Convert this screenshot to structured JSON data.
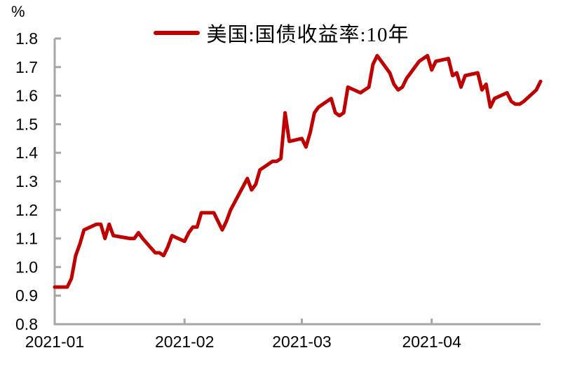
{
  "unit_label": "%",
  "chart_data": {
    "type": "line",
    "legend": "美国:国债收益率:10年",
    "unit": "%",
    "legend_position": "top-center",
    "grid": false,
    "line_color": "#C00000",
    "axis_color": "#A6A6A6",
    "text_color": "#000000",
    "y_axis": {
      "min": 0.8,
      "max": 1.8,
      "step": 0.1,
      "tick_labels": [
        "0.8",
        "0.9",
        "1.0",
        "1.1",
        "1.2",
        "1.3",
        "1.4",
        "1.5",
        "1.6",
        "1.7",
        "1.8"
      ]
    },
    "x_ticks": [
      {
        "label": "2021-01",
        "date": "2021-01-01"
      },
      {
        "label": "2021-02",
        "date": "2021-02-01"
      },
      {
        "label": "2021-03",
        "date": "2021-03-01"
      },
      {
        "label": "2021-04",
        "date": "2021-04-01"
      }
    ],
    "points": [
      [
        "2021-01-01",
        0.93
      ],
      [
        "2021-01-04",
        0.93
      ],
      [
        "2021-01-05",
        0.96
      ],
      [
        "2021-01-06",
        1.04
      ],
      [
        "2021-01-07",
        1.08
      ],
      [
        "2021-01-08",
        1.13
      ],
      [
        "2021-01-11",
        1.15
      ],
      [
        "2021-01-12",
        1.15
      ],
      [
        "2021-01-13",
        1.1
      ],
      [
        "2021-01-14",
        1.15
      ],
      [
        "2021-01-15",
        1.11
      ],
      [
        "2021-01-19",
        1.1
      ],
      [
        "2021-01-20",
        1.1
      ],
      [
        "2021-01-21",
        1.12
      ],
      [
        "2021-01-22",
        1.1
      ],
      [
        "2021-01-25",
        1.05
      ],
      [
        "2021-01-26",
        1.05
      ],
      [
        "2021-01-27",
        1.04
      ],
      [
        "2021-01-28",
        1.07
      ],
      [
        "2021-01-29",
        1.11
      ],
      [
        "2021-02-01",
        1.09
      ],
      [
        "2021-02-02",
        1.12
      ],
      [
        "2021-02-03",
        1.14
      ],
      [
        "2021-02-04",
        1.14
      ],
      [
        "2021-02-05",
        1.19
      ],
      [
        "2021-02-08",
        1.19
      ],
      [
        "2021-02-09",
        1.16
      ],
      [
        "2021-02-10",
        1.13
      ],
      [
        "2021-02-11",
        1.16
      ],
      [
        "2021-02-12",
        1.2
      ],
      [
        "2021-02-16",
        1.31
      ],
      [
        "2021-02-17",
        1.27
      ],
      [
        "2021-02-18",
        1.29
      ],
      [
        "2021-02-19",
        1.34
      ],
      [
        "2021-02-22",
        1.37
      ],
      [
        "2021-02-23",
        1.37
      ],
      [
        "2021-02-24",
        1.38
      ],
      [
        "2021-02-25",
        1.54
      ],
      [
        "2021-02-26",
        1.44
      ],
      [
        "2021-03-01",
        1.45
      ],
      [
        "2021-03-02",
        1.42
      ],
      [
        "2021-03-03",
        1.47
      ],
      [
        "2021-03-04",
        1.54
      ],
      [
        "2021-03-05",
        1.56
      ],
      [
        "2021-03-08",
        1.59
      ],
      [
        "2021-03-09",
        1.54
      ],
      [
        "2021-03-10",
        1.53
      ],
      [
        "2021-03-11",
        1.54
      ],
      [
        "2021-03-12",
        1.63
      ],
      [
        "2021-03-15",
        1.61
      ],
      [
        "2021-03-16",
        1.62
      ],
      [
        "2021-03-17",
        1.63
      ],
      [
        "2021-03-18",
        1.71
      ],
      [
        "2021-03-19",
        1.74
      ],
      [
        "2021-03-22",
        1.68
      ],
      [
        "2021-03-23",
        1.64
      ],
      [
        "2021-03-24",
        1.62
      ],
      [
        "2021-03-25",
        1.63
      ],
      [
        "2021-03-26",
        1.66
      ],
      [
        "2021-03-29",
        1.72
      ],
      [
        "2021-03-30",
        1.73
      ],
      [
        "2021-03-31",
        1.74
      ],
      [
        "2021-04-01",
        1.69
      ],
      [
        "2021-04-02",
        1.72
      ],
      [
        "2021-04-05",
        1.73
      ],
      [
        "2021-04-06",
        1.67
      ],
      [
        "2021-04-07",
        1.68
      ],
      [
        "2021-04-08",
        1.63
      ],
      [
        "2021-04-09",
        1.67
      ],
      [
        "2021-04-12",
        1.68
      ],
      [
        "2021-04-13",
        1.62
      ],
      [
        "2021-04-14",
        1.64
      ],
      [
        "2021-04-15",
        1.56
      ],
      [
        "2021-04-16",
        1.59
      ],
      [
        "2021-04-19",
        1.61
      ],
      [
        "2021-04-20",
        1.58
      ],
      [
        "2021-04-21",
        1.57
      ],
      [
        "2021-04-22",
        1.57
      ],
      [
        "2021-04-23",
        1.58
      ],
      [
        "2021-04-26",
        1.62
      ],
      [
        "2021-04-27",
        1.65
      ]
    ]
  }
}
